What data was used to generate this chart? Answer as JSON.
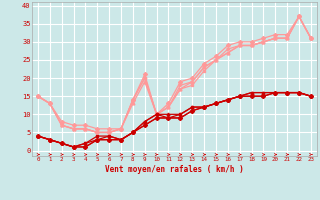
{
  "bg_color": "#cce8e8",
  "grid_color": "#ffffff",
  "xlabel": "Vent moyen/en rafales ( km/h )",
  "xlabel_color": "#cc0000",
  "tick_color": "#cc0000",
  "x_ticks": [
    0,
    1,
    2,
    3,
    4,
    5,
    6,
    7,
    8,
    9,
    10,
    11,
    12,
    13,
    14,
    15,
    16,
    17,
    18,
    19,
    20,
    21,
    22,
    23
  ],
  "ylim": [
    -1.5,
    41
  ],
  "xlim": [
    -0.5,
    23.5
  ],
  "yticks": [
    0,
    5,
    10,
    15,
    20,
    25,
    30,
    35,
    40
  ],
  "dark_lines": [
    [
      4,
      3,
      2,
      1,
      1,
      3,
      3,
      3,
      5,
      7,
      9,
      9,
      9,
      11,
      12,
      13,
      14,
      15,
      15,
      15,
      16,
      16,
      16,
      15
    ],
    [
      4,
      3,
      2,
      1,
      1,
      3,
      3,
      3,
      5,
      7,
      9,
      9,
      9,
      11,
      12,
      13,
      14,
      15,
      15,
      15,
      16,
      16,
      16,
      15
    ],
    [
      4,
      3,
      2,
      1,
      2,
      3,
      4,
      3,
      5,
      8,
      10,
      10,
      10,
      12,
      12,
      13,
      14,
      15,
      16,
      16,
      16,
      16,
      16,
      15
    ],
    [
      4,
      3,
      2,
      1,
      2,
      4,
      4,
      3,
      5,
      8,
      10,
      9,
      10,
      12,
      12,
      13,
      14,
      15,
      16,
      16,
      16,
      16,
      16,
      15
    ]
  ],
  "light_lines": [
    [
      15,
      13,
      8,
      7,
      7,
      6,
      6,
      6,
      14,
      21,
      10,
      13,
      19,
      20,
      24,
      26,
      29,
      30,
      30,
      31,
      32,
      32,
      37,
      31
    ],
    [
      15,
      13,
      7,
      6,
      6,
      5,
      5,
      6,
      14,
      20,
      10,
      12,
      18,
      19,
      23,
      25,
      28,
      29,
      29,
      30,
      31,
      31,
      37,
      31
    ],
    [
      15,
      13,
      7,
      6,
      6,
      5,
      5,
      6,
      13,
      19,
      10,
      12,
      17,
      19,
      23,
      25,
      27,
      29,
      29,
      30,
      31,
      31,
      37,
      31
    ],
    [
      15,
      13,
      7,
      6,
      6,
      5,
      5,
      6,
      14,
      20,
      10,
      12,
      17,
      18,
      22,
      25,
      27,
      29,
      29,
      30,
      31,
      31,
      37,
      31
    ]
  ],
  "dark_color": "#cc0000",
  "light_color": "#ff9999",
  "lw": 0.9,
  "ms": 2.0,
  "markers": [
    "D",
    ">",
    "^",
    "s"
  ]
}
